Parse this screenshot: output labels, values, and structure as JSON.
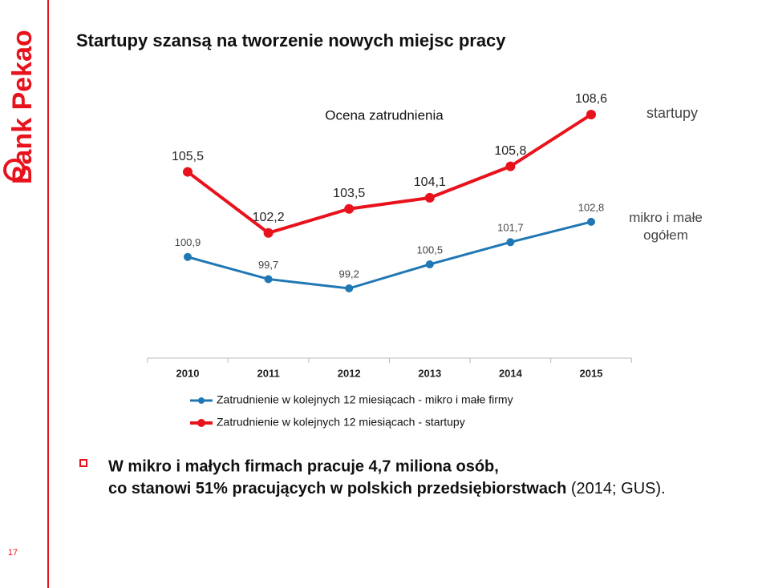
{
  "logo": "Bank Pekao",
  "title": "Startupy szansą na tworzenie nowych miejsc pracy",
  "page_number": "17",
  "chart_data": {
    "type": "line",
    "title": "Ocena zatrudnienia",
    "categories": [
      "2010",
      "2011",
      "2012",
      "2013",
      "2014",
      "2015"
    ],
    "series": [
      {
        "name": "Zatrudnienie w kolejnych 12 miesiącach - mikro i małe firmy",
        "color": "#1f77b4",
        "values": [
          100.9,
          99.7,
          99.2,
          100.5,
          101.7,
          102.8
        ],
        "value_labels": [
          "100,9",
          "99,7",
          "99,2",
          "100,5",
          "101,7",
          "102,8"
        ]
      },
      {
        "name": "Zatrudnienie w kolejnych 12 miesiącach - startupy",
        "color": "#e8121c",
        "values": [
          105.5,
          102.2,
          103.5,
          104.1,
          105.8,
          108.6
        ],
        "value_labels": [
          "105,5",
          "102,2",
          "103,5",
          "104,1",
          "105,8",
          "108,6"
        ]
      }
    ],
    "annotations": [
      "startupy",
      "mikro i małe ogółem"
    ]
  },
  "note": {
    "line1": "W mikro i małych firmach pracuje 4,7 miliona osób,",
    "line2_bold": "co stanowi 51% pracujących w polskich przedsiębiorstwach",
    "line2_normal": "(2014; GUS)."
  }
}
